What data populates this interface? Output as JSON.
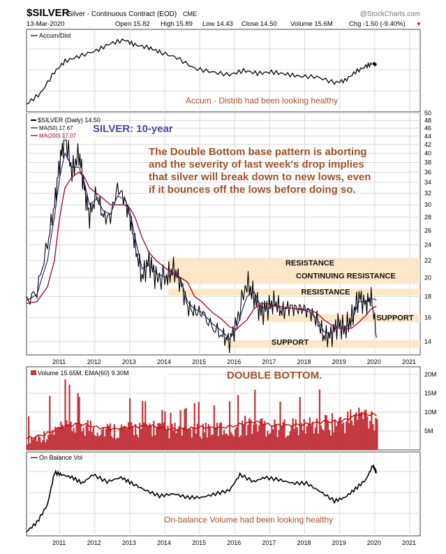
{
  "header": {
    "symbol": "$SILVER",
    "desc": "Silver - Continuous Contract (EOD)",
    "exchange": "CME",
    "brand": "@StockCharts.com",
    "date": "13-Mar-2020",
    "open": "Open 15.82",
    "high": "High 15.89",
    "low": "Low 14.43",
    "close": "Close 14.50",
    "volume": "Volume 15.6M",
    "chg": "Chg -1.50 (-9.40%)"
  },
  "colors": {
    "price": "#000000",
    "ma50": "#1a1a66",
    "ma200": "#990033",
    "volume": "#c2393f",
    "ema": "#d40000",
    "zone": "#fbe6c2",
    "annotation": "#a0522d",
    "title_blue": "#4a4aa8",
    "grid": "#d8d8d8"
  },
  "chart_data": [
    {
      "type": "line",
      "panel": "accum_dist",
      "legend": "Accum/Dist",
      "annotation": "Accum - Distrib had been looking healthy",
      "x": [
        2010.2,
        2010.6,
        2011.0,
        2011.3,
        2011.7,
        2012.2,
        2012.6,
        2013.0,
        2013.3,
        2013.7,
        2014.0,
        2014.5,
        2015.0,
        2015.5,
        2016.0,
        2016.4,
        2016.8,
        2017.2,
        2017.6,
        2018.0,
        2018.5,
        2019.0,
        2019.3,
        2019.6,
        2019.9,
        2020.1,
        2020.2
      ],
      "values": [
        0.05,
        0.2,
        0.5,
        0.65,
        0.72,
        0.8,
        0.9,
        0.95,
        0.88,
        0.84,
        0.78,
        0.7,
        0.55,
        0.5,
        0.46,
        0.52,
        0.48,
        0.5,
        0.47,
        0.44,
        0.43,
        0.35,
        0.38,
        0.5,
        0.58,
        0.62,
        0.6
      ],
      "grid": true
    },
    {
      "type": "line",
      "panel": "price",
      "legend": [
        "$SILVER (Daily) 14.50",
        "MA(50) 17.67",
        "MA(200) 17.07"
      ],
      "title": "SILVER: 10-year",
      "note": "The Double Bottom base pattern is aborting and the severity of last week's drop implies that silver will break down to new lows, even if it bounces off the lows before doing so.",
      "log_scale": true,
      "ylim": [
        13,
        50
      ],
      "y_ticks": [
        14,
        16,
        18,
        20,
        22,
        24,
        26,
        28,
        30,
        32,
        34,
        36,
        38,
        40,
        42,
        44,
        46,
        48,
        50
      ],
      "x_ticks": [
        "2011",
        "2012",
        "2013",
        "2014",
        "2015",
        "2016",
        "2017",
        "2018",
        "2019",
        "2020",
        "2021"
      ],
      "x": [
        2010.2,
        2010.5,
        2010.8,
        2011.0,
        2011.15,
        2011.3,
        2011.5,
        2011.7,
        2011.85,
        2012.0,
        2012.2,
        2012.4,
        2012.6,
        2012.8,
        2013.0,
        2013.15,
        2013.3,
        2013.5,
        2013.7,
        2013.9,
        2014.2,
        2014.4,
        2014.6,
        2014.8,
        2015.0,
        2015.2,
        2015.5,
        2015.8,
        2016.0,
        2016.2,
        2016.5,
        2016.7,
        2016.9,
        2017.1,
        2017.3,
        2017.5,
        2017.7,
        2017.9,
        2018.1,
        2018.3,
        2018.5,
        2018.7,
        2018.9,
        2019.1,
        2019.3,
        2019.5,
        2019.7,
        2019.9,
        2020.05,
        2020.2
      ],
      "series": [
        {
          "name": "$SILVER (Daily) 14.50",
          "values": [
            17.5,
            18.5,
            24,
            30,
            38,
            44,
            36,
            40,
            33,
            28,
            32,
            28,
            28,
            33,
            31,
            28,
            24,
            20,
            22,
            20,
            20,
            21,
            19.5,
            17,
            16.5,
            16.5,
            15.2,
            14.5,
            14,
            15.5,
            19.5,
            18,
            16.5,
            17,
            17.5,
            16.5,
            17,
            16.8,
            16.8,
            16.5,
            15.8,
            14.4,
            14.5,
            15.5,
            15,
            16,
            18,
            17.2,
            18,
            14.5
          ]
        },
        {
          "name": "MA(50) 17.67",
          "values": [
            17.6,
            18.2,
            22,
            28,
            35,
            40,
            37,
            37,
            34,
            30,
            31,
            29,
            28.5,
            31.5,
            31,
            29,
            25,
            21,
            21.5,
            20.5,
            20,
            20.5,
            19.8,
            17.5,
            16.8,
            16.5,
            15.5,
            14.8,
            14.2,
            15,
            18,
            18.5,
            17,
            16.8,
            17.2,
            16.8,
            16.9,
            16.8,
            16.7,
            16.5,
            15.9,
            14.8,
            14.6,
            15.3,
            15.1,
            15.7,
            17.5,
            17.5,
            17.8,
            17.67
          ]
        },
        {
          "name": "MA(200) 17.07",
          "values": [
            17.3,
            17.5,
            19,
            22,
            28,
            33,
            35,
            36,
            35,
            33,
            32,
            31,
            30,
            30,
            30,
            29.5,
            28,
            25,
            23,
            22,
            21,
            20.5,
            20,
            19.5,
            18,
            17.5,
            16.5,
            15.8,
            15.2,
            15,
            15.8,
            16.8,
            17.3,
            17.3,
            17.1,
            17,
            16.9,
            16.8,
            16.8,
            16.7,
            16.4,
            15.8,
            15.4,
            15.1,
            15,
            15.1,
            15.6,
            16.2,
            16.8,
            17.07
          ]
        }
      ],
      "zones": [
        {
          "label": "RESISTANCE",
          "range": [
            21,
            22.3
          ]
        },
        {
          "label": "CONTINUING RESISTANCE",
          "range": [
            19.3,
            21
          ]
        },
        {
          "label": "RESISTANCE",
          "range": [
            18.1,
            18.8
          ]
        },
        {
          "label": "SUPPORT",
          "range": [
            15.6,
            16.3
          ]
        },
        {
          "label": "SUPPORT",
          "range": [
            13.5,
            14.1
          ]
        }
      ],
      "grid": true
    },
    {
      "type": "bar",
      "panel": "volume",
      "legend": "Volume 15.65M, EMA(60) 9.30M",
      "annotation": "DOUBLE BOTTOM.",
      "y_ticks": [
        "5M",
        "10M",
        "15M",
        "20M"
      ],
      "ylim": [
        0,
        22
      ],
      "x": [
        2010.2,
        2010.7,
        2011.2,
        2011.7,
        2012.2,
        2012.7,
        2013.2,
        2013.7,
        2014.2,
        2014.7,
        2015.2,
        2015.7,
        2016.2,
        2016.7,
        2017.2,
        2017.7,
        2018.2,
        2018.7,
        2019.2,
        2019.7,
        2020.2
      ],
      "ema": [
        3,
        4,
        6,
        7,
        6,
        5.5,
        6,
        6.5,
        5.5,
        5.5,
        6,
        5.8,
        6.5,
        7.5,
        6.5,
        6.5,
        6.8,
        7.5,
        7.5,
        9.5,
        9.3
      ],
      "peaks": [
        8,
        12,
        17,
        12,
        11,
        9,
        12,
        11,
        8,
        9,
        11,
        9,
        13,
        14,
        10,
        11,
        12,
        14,
        13,
        18,
        20
      ],
      "grid": true
    },
    {
      "type": "line",
      "panel": "obv",
      "legend": "On Balance Vol",
      "annotation": "On-balance Volume had been looking healthy",
      "x_ticks": [
        "2011",
        "2012",
        "2013",
        "2014",
        "2015",
        "2016",
        "2017",
        "2018",
        "2019",
        "2020",
        "2021"
      ],
      "x": [
        2010.2,
        2010.5,
        2010.8,
        2011.0,
        2011.2,
        2011.5,
        2011.8,
        2012.1,
        2012.5,
        2012.9,
        2013.2,
        2013.6,
        2014.0,
        2014.4,
        2014.8,
        2015.2,
        2015.6,
        2016.0,
        2016.3,
        2016.7,
        2017.0,
        2017.4,
        2017.8,
        2018.2,
        2018.6,
        2019.0,
        2019.3,
        2019.6,
        2019.9,
        2020.1,
        2020.2
      ],
      "values": [
        0.02,
        0.15,
        0.4,
        0.85,
        0.82,
        0.78,
        0.7,
        0.82,
        0.72,
        0.78,
        0.7,
        0.6,
        0.52,
        0.55,
        0.5,
        0.5,
        0.55,
        0.6,
        0.82,
        0.72,
        0.78,
        0.75,
        0.7,
        0.7,
        0.58,
        0.45,
        0.5,
        0.62,
        0.75,
        0.95,
        0.85
      ],
      "grid": true
    }
  ]
}
